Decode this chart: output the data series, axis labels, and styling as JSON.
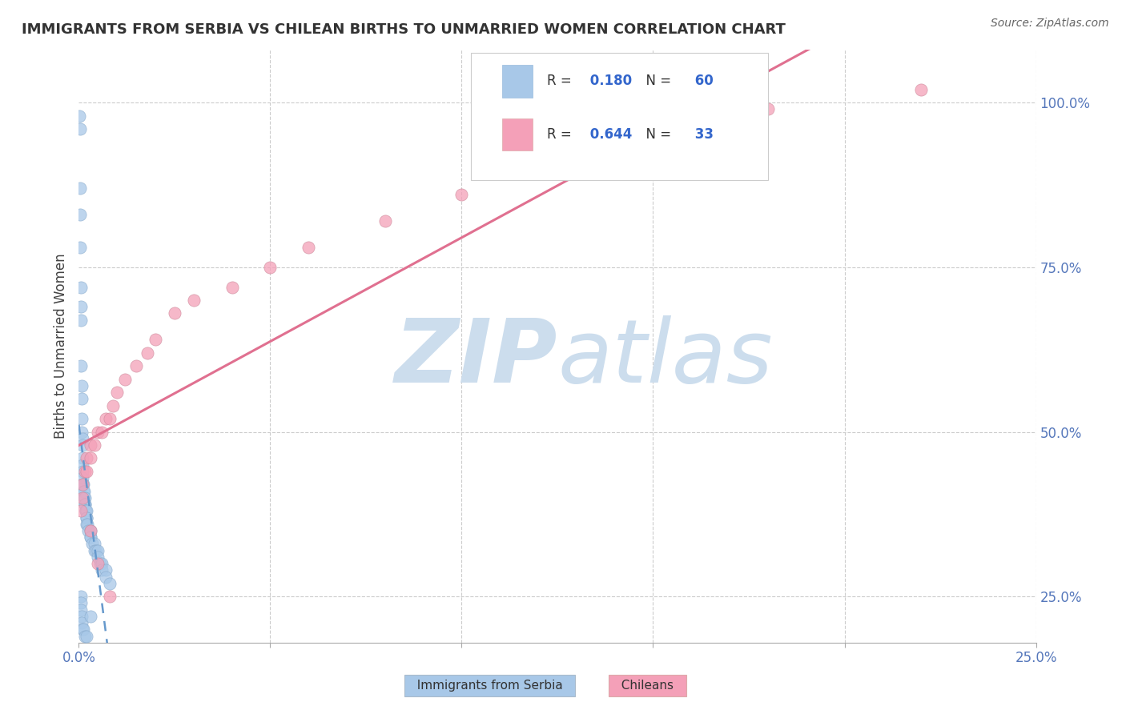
{
  "title": "IMMIGRANTS FROM SERBIA VS CHILEAN BIRTHS TO UNMARRIED WOMEN CORRELATION CHART",
  "source_text": "Source: ZipAtlas.com",
  "ylabel": "Births to Unmarried Women",
  "x_legend_label1": "Immigrants from Serbia",
  "x_legend_label2": "Chileans",
  "xlim": [
    0.0,
    0.25
  ],
  "ylim": [
    0.18,
    1.08
  ],
  "xticks": [
    0.0,
    0.05,
    0.1,
    0.15,
    0.2,
    0.25
  ],
  "yticks": [
    0.25,
    0.5,
    0.75,
    1.0
  ],
  "legend_R1": "0.180",
  "legend_N1": "60",
  "legend_R2": "0.644",
  "legend_N2": "33",
  "color_serbia": "#a8c8e8",
  "color_chilean": "#f4a0b8",
  "color_serbia_line": "#6699cc",
  "color_chilean_line": "#e07090",
  "watermark_color": "#ccdded",
  "serbia_x": [
    0.0002,
    0.0003,
    0.0003,
    0.0004,
    0.0004,
    0.0005,
    0.0005,
    0.0006,
    0.0006,
    0.0007,
    0.0007,
    0.0008,
    0.0008,
    0.0009,
    0.0009,
    0.001,
    0.001,
    0.001,
    0.001,
    0.001,
    0.0012,
    0.0012,
    0.0013,
    0.0014,
    0.0015,
    0.0015,
    0.0016,
    0.0017,
    0.0018,
    0.002,
    0.002,
    0.002,
    0.002,
    0.0022,
    0.0025,
    0.003,
    0.003,
    0.003,
    0.0035,
    0.004,
    0.004,
    0.0045,
    0.005,
    0.005,
    0.0055,
    0.006,
    0.006,
    0.007,
    0.007,
    0.008,
    0.0005,
    0.0005,
    0.0006,
    0.0007,
    0.0008,
    0.001,
    0.0012,
    0.0015,
    0.002,
    0.003
  ],
  "serbia_y": [
    0.98,
    0.96,
    0.87,
    0.83,
    0.78,
    0.72,
    0.69,
    0.67,
    0.6,
    0.57,
    0.55,
    0.52,
    0.5,
    0.49,
    0.48,
    0.46,
    0.45,
    0.44,
    0.43,
    0.42,
    0.42,
    0.41,
    0.41,
    0.4,
    0.4,
    0.39,
    0.39,
    0.38,
    0.38,
    0.38,
    0.37,
    0.37,
    0.36,
    0.36,
    0.35,
    0.35,
    0.34,
    0.34,
    0.33,
    0.33,
    0.32,
    0.32,
    0.32,
    0.31,
    0.3,
    0.3,
    0.29,
    0.29,
    0.28,
    0.27,
    0.25,
    0.24,
    0.23,
    0.22,
    0.21,
    0.2,
    0.2,
    0.19,
    0.19,
    0.22
  ],
  "chilean_x": [
    0.0005,
    0.001,
    0.001,
    0.0015,
    0.002,
    0.002,
    0.003,
    0.003,
    0.004,
    0.005,
    0.006,
    0.007,
    0.008,
    0.009,
    0.01,
    0.012,
    0.015,
    0.018,
    0.02,
    0.025,
    0.03,
    0.04,
    0.05,
    0.06,
    0.08,
    0.1,
    0.12,
    0.15,
    0.18,
    0.22,
    0.003,
    0.005,
    0.008
  ],
  "chilean_y": [
    0.38,
    0.4,
    0.42,
    0.44,
    0.44,
    0.46,
    0.46,
    0.48,
    0.48,
    0.5,
    0.5,
    0.52,
    0.52,
    0.54,
    0.56,
    0.58,
    0.6,
    0.62,
    0.64,
    0.68,
    0.7,
    0.72,
    0.75,
    0.78,
    0.82,
    0.86,
    0.9,
    0.95,
    0.99,
    1.02,
    0.35,
    0.3,
    0.25
  ],
  "serbia_trend": [
    0.0,
    0.25,
    0.37,
    0.52
  ],
  "chilean_trend": [
    0.0,
    0.25,
    0.3,
    1.02
  ]
}
